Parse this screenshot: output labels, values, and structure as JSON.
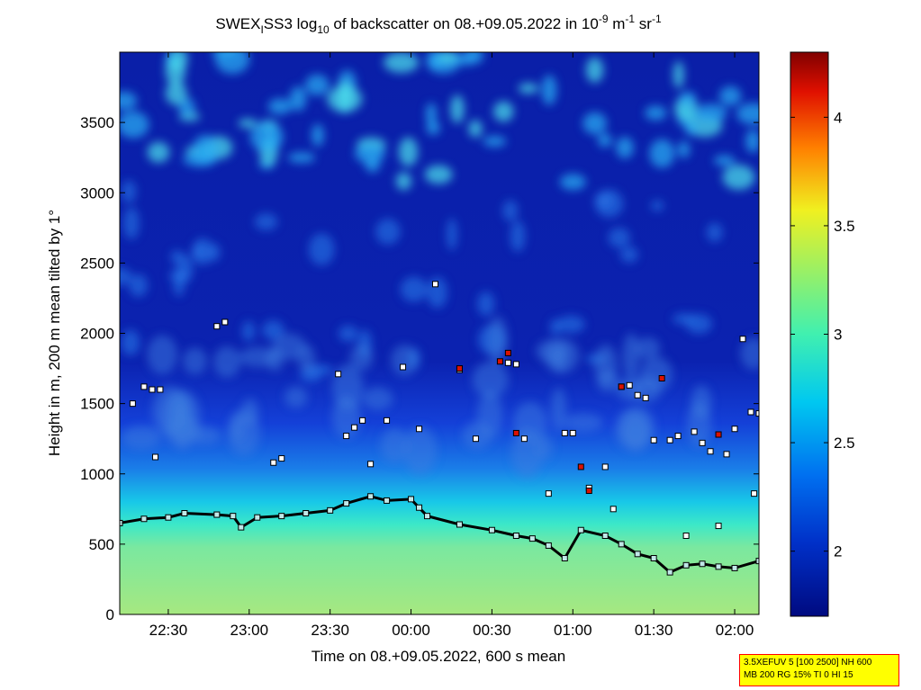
{
  "chart_data": {
    "type": "heatmap",
    "title": {
      "part1": "SWEX",
      "sub1": "I",
      "part2": "SS3 log",
      "sub2": "10",
      "part3": " of backscatter on 08.+09.05.2022 in 10",
      "sup1": "-9",
      "part4": " m",
      "sup2": "-1",
      "part5": " sr",
      "sup3": "-1"
    },
    "xlabel": "Time on 08.+09.05.2022, 600 s mean",
    "ylabel": "Height in m, 200 m mean tilted by 1°",
    "xlim_hours": [
      22.2,
      26.15
    ],
    "ylim": [
      0,
      4000
    ],
    "x_ticks": [
      {
        "value": 22.5,
        "label": "22:30"
      },
      {
        "value": 23.0,
        "label": "23:00"
      },
      {
        "value": 23.5,
        "label": "23:30"
      },
      {
        "value": 24.0,
        "label": "00:00"
      },
      {
        "value": 24.5,
        "label": "00:30"
      },
      {
        "value": 25.0,
        "label": "01:00"
      },
      {
        "value": 25.5,
        "label": "01:30"
      },
      {
        "value": 26.0,
        "label": "02:00"
      }
    ],
    "y_ticks": [
      {
        "value": 0,
        "label": "0"
      },
      {
        "value": 500,
        "label": "500"
      },
      {
        "value": 1000,
        "label": "1000"
      },
      {
        "value": 1500,
        "label": "1500"
      },
      {
        "value": 2000,
        "label": "2000"
      },
      {
        "value": 2500,
        "label": "2500"
      },
      {
        "value": 3000,
        "label": "3000"
      },
      {
        "value": 3500,
        "label": "3500"
      }
    ],
    "colorbar": {
      "range": [
        1.7,
        4.3
      ],
      "ticks": [
        {
          "value": 2,
          "label": "2"
        },
        {
          "value": 2.5,
          "label": "2.5"
        },
        {
          "value": 3,
          "label": "3"
        },
        {
          "value": 3.5,
          "label": "3.5"
        },
        {
          "value": 4,
          "label": "4"
        }
      ]
    },
    "mixing_layer_height": {
      "x": [
        22.2,
        22.35,
        22.5,
        22.6,
        22.8,
        22.9,
        22.95,
        23.05,
        23.2,
        23.35,
        23.5,
        23.6,
        23.75,
        23.85,
        24.0,
        24.05,
        24.1,
        24.3,
        24.5,
        24.65,
        24.75,
        24.85,
        24.95,
        25.05,
        25.2,
        25.3,
        25.4,
        25.5,
        25.6,
        25.7,
        25.8,
        25.9,
        26.0,
        26.15
      ],
      "y": [
        650,
        680,
        690,
        720,
        710,
        700,
        620,
        690,
        700,
        720,
        740,
        790,
        840,
        810,
        820,
        760,
        700,
        640,
        600,
        560,
        540,
        490,
        400,
        600,
        560,
        500,
        430,
        400,
        300,
        350,
        360,
        340,
        330,
        380
      ]
    },
    "cloud_layer_points": [
      {
        "x": 22.28,
        "y": 1500
      },
      {
        "x": 22.35,
        "y": 1620
      },
      {
        "x": 22.4,
        "y": 1600
      },
      {
        "x": 22.42,
        "y": 1120
      },
      {
        "x": 22.45,
        "y": 1600
      },
      {
        "x": 22.8,
        "y": 2050
      },
      {
        "x": 22.85,
        "y": 2080
      },
      {
        "x": 23.15,
        "y": 1080
      },
      {
        "x": 23.2,
        "y": 1110
      },
      {
        "x": 23.55,
        "y": 1710
      },
      {
        "x": 23.6,
        "y": 1270
      },
      {
        "x": 23.65,
        "y": 1330
      },
      {
        "x": 23.7,
        "y": 1380
      },
      {
        "x": 23.75,
        "y": 1070
      },
      {
        "x": 23.85,
        "y": 1380
      },
      {
        "x": 23.95,
        "y": 1760
      },
      {
        "x": 24.05,
        "y": 1320
      },
      {
        "x": 24.15,
        "y": 2350
      },
      {
        "x": 24.3,
        "y": 1740
      },
      {
        "x": 24.4,
        "y": 1250
      },
      {
        "x": 24.6,
        "y": 1790
      },
      {
        "x": 24.65,
        "y": 1780
      },
      {
        "x": 24.7,
        "y": 1250
      },
      {
        "x": 24.85,
        "y": 860
      },
      {
        "x": 24.95,
        "y": 1290
      },
      {
        "x": 25.0,
        "y": 1290
      },
      {
        "x": 25.1,
        "y": 900
      },
      {
        "x": 25.2,
        "y": 1050
      },
      {
        "x": 25.25,
        "y": 750
      },
      {
        "x": 25.3,
        "y": 1620
      },
      {
        "x": 25.35,
        "y": 1630
      },
      {
        "x": 25.4,
        "y": 1560
      },
      {
        "x": 25.45,
        "y": 1540
      },
      {
        "x": 25.5,
        "y": 1240
      },
      {
        "x": 25.6,
        "y": 1240
      },
      {
        "x": 25.65,
        "y": 1270
      },
      {
        "x": 25.7,
        "y": 560
      },
      {
        "x": 25.75,
        "y": 1300
      },
      {
        "x": 25.8,
        "y": 1220
      },
      {
        "x": 25.85,
        "y": 1160
      },
      {
        "x": 25.9,
        "y": 630
      },
      {
        "x": 25.95,
        "y": 1140
      },
      {
        "x": 26.0,
        "y": 1320
      },
      {
        "x": 26.05,
        "y": 1960
      },
      {
        "x": 26.1,
        "y": 1440
      },
      {
        "x": 26.12,
        "y": 860
      },
      {
        "x": 26.15,
        "y": 1430
      }
    ],
    "high_backscatter_points": [
      {
        "x": 24.3,
        "y": 1750
      },
      {
        "x": 24.55,
        "y": 1800
      },
      {
        "x": 24.6,
        "y": 1860
      },
      {
        "x": 24.65,
        "y": 1290
      },
      {
        "x": 25.05,
        "y": 1050
      },
      {
        "x": 25.1,
        "y": 880
      },
      {
        "x": 25.3,
        "y": 1620
      },
      {
        "x": 25.55,
        "y": 1680
      },
      {
        "x": 25.9,
        "y": 1280
      }
    ]
  },
  "info_box": {
    "line1": "3.5XEFUV 5 [100 2500] NH 600",
    "line2": "MB 200 RG 15% TI 0 HI 15"
  }
}
